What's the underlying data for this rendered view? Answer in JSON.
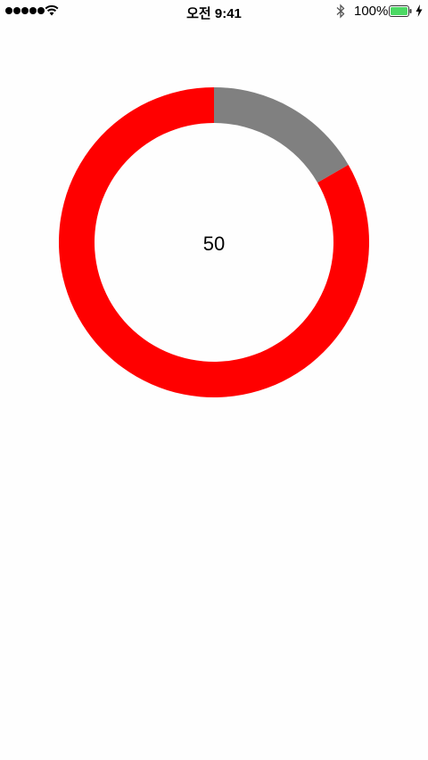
{
  "status_bar": {
    "signal_dots": 5,
    "signal_icon": "signal-dots-icon",
    "wifi_icon": "wifi-icon",
    "time": "오전 9:41",
    "bluetooth_icon": "bluetooth-icon",
    "battery_percent": "100%",
    "battery_icon": "battery-icon",
    "battery_level": 1.0,
    "charging_icon": "charging-bolt-icon",
    "battery_color": "#4cd964"
  },
  "progress_ring": {
    "center_value": "50",
    "segments": [
      {
        "fraction": 0.1667,
        "color": "#808080"
      },
      {
        "fraction": 0.8333,
        "color": "#ff0000"
      }
    ]
  }
}
